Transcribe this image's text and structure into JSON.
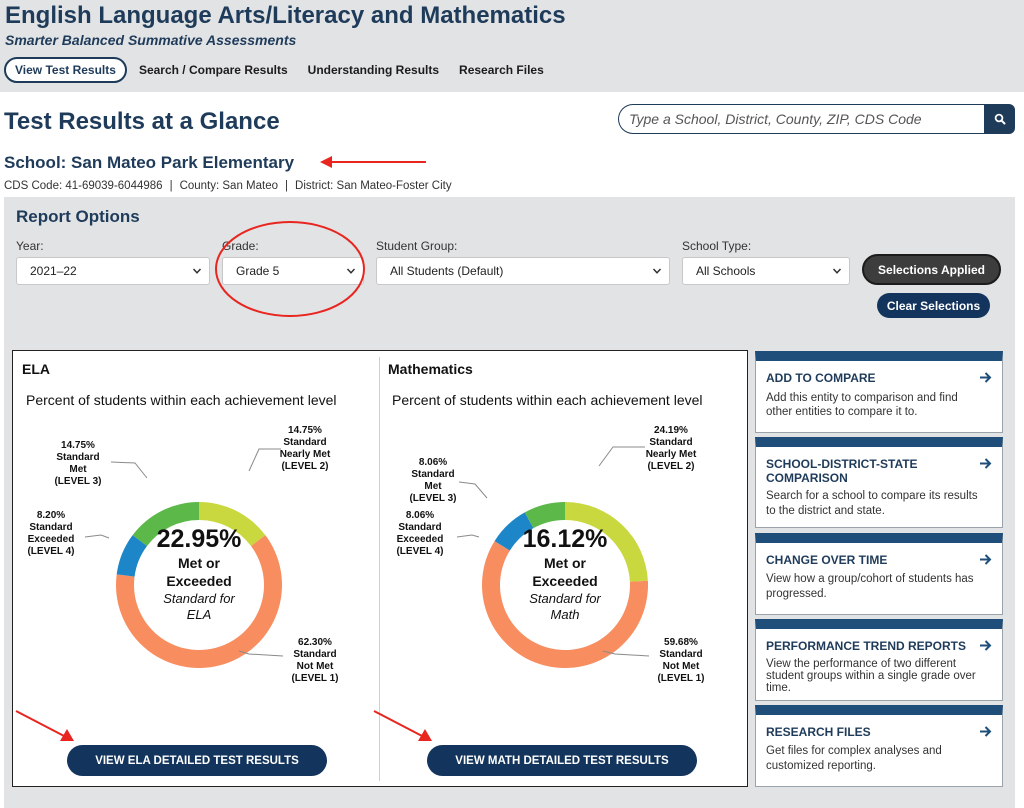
{
  "header": {
    "title": "English Language Arts/Literacy and Mathematics",
    "subtitle": "Smarter Balanced Summative Assessments",
    "nav": [
      "View Test Results",
      "Search / Compare Results",
      "Understanding Results",
      "Research Files"
    ]
  },
  "page": {
    "title": "Test Results at a Glance",
    "search_placeholder": "Type a School, District, County, ZIP, CDS Code"
  },
  "school": {
    "name": "School: San Mateo Park Elementary",
    "cds": "CDS Code: 41-69039-6044986",
    "county": "County: San Mateo",
    "district": "District: San Mateo-Foster City"
  },
  "report_options": {
    "title": "Report Options",
    "year_label": "Year:",
    "year_value": "2021–22",
    "grade_label": "Grade:",
    "grade_value": "Grade 5",
    "group_label": "Student Group:",
    "group_value": "All Students (Default)",
    "type_label": "School Type:",
    "type_value": "All Schools",
    "applied_button": "Selections Applied",
    "clear_button": "Clear Selections"
  },
  "chart_data": [
    {
      "type": "pie",
      "title": "ELA",
      "subtitle": "Percent of students within each achievement level",
      "center_value": "22.95%",
      "center_line1": "Met or",
      "center_line2": "Exceeded",
      "center_line3": "Standard for",
      "center_line4": "ELA",
      "slices": [
        {
          "value": 14.75,
          "pct": "14.75%",
          "line1": "Standard",
          "line2": "Nearly Met",
          "level": "(LEVEL 2)",
          "color": "#c9d83e"
        },
        {
          "value": 62.3,
          "pct": "62.30%",
          "line1": "Standard",
          "line2": "Not Met",
          "level": "(LEVEL 1)",
          "color": "#f88d5f"
        },
        {
          "value": 8.2,
          "pct": "8.20%",
          "line1": "Standard",
          "line2": "Exceeded",
          "level": "(LEVEL 4)",
          "color": "#1c86c8"
        },
        {
          "value": 14.75,
          "pct": "14.75%",
          "line1": "Standard",
          "line2": "Met",
          "level": "(LEVEL 3)",
          "color": "#5cb848"
        }
      ],
      "button": "VIEW ELA DETAILED TEST RESULTS"
    },
    {
      "type": "pie",
      "title": "Mathematics",
      "subtitle": "Percent of students within each achievement level",
      "center_value": "16.12%",
      "center_line1": "Met or",
      "center_line2": "Exceeded",
      "center_line3": "Standard for",
      "center_line4": "Math",
      "slices": [
        {
          "value": 24.19,
          "pct": "24.19%",
          "line1": "Standard",
          "line2": "Nearly Met",
          "level": "(LEVEL 2)",
          "color": "#c9d83e"
        },
        {
          "value": 59.68,
          "pct": "59.68%",
          "line1": "Standard",
          "line2": "Not Met",
          "level": "(LEVEL 1)",
          "color": "#f88d5f"
        },
        {
          "value": 8.06,
          "pct": "8.06%",
          "line1": "Standard",
          "line2": "Exceeded",
          "level": "(LEVEL 4)",
          "color": "#1c86c8"
        },
        {
          "value": 8.06,
          "pct": "8.06%",
          "line1": "Standard",
          "line2": "Met",
          "level": "(LEVEL 3)",
          "color": "#5cb848"
        }
      ],
      "button": "VIEW MATH DETAILED TEST RESULTS"
    }
  ],
  "side_cards": [
    {
      "title1": "ADD TO COMPARE",
      "title2": "",
      "desc1": "Add this entity to comparison and find",
      "desc2": "other entities to compare it to.",
      "desc3": ""
    },
    {
      "title1": "SCHOOL-DISTRICT-STATE",
      "title2": "COMPARISON",
      "desc1": "Search for a school to compare its results",
      "desc2": "to the district and state.",
      "desc3": ""
    },
    {
      "title1": "CHANGE OVER TIME",
      "title2": "",
      "desc1": "View how a group/cohort of students has",
      "desc2": "progressed.",
      "desc3": ""
    },
    {
      "title1": "PERFORMANCE TREND REPORTS",
      "title2": "",
      "desc1": "View the performance of two different",
      "desc2": "student groups within a single grade over",
      "desc3": "time."
    },
    {
      "title1": "RESEARCH FILES",
      "title2": "",
      "desc1": "Get files for complex analyses and",
      "desc2": "customized reporting.",
      "desc3": ""
    }
  ],
  "annotation_color": "#e8251f"
}
